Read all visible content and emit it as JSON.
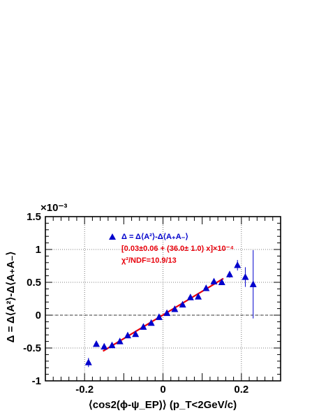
{
  "chart_data": {
    "type": "scatter",
    "xlabel": "⟨cos2(ϕ-ψ_EP)⟩ (p_T<2GeV/c)",
    "ylabel": "Δ = Δ⟨A²⟩-Δ⟨A₊A₋⟩",
    "y_multiplier": "×10⁻³",
    "xlim": [
      -0.3,
      0.3
    ],
    "ylim": [
      -1.0,
      1.5
    ],
    "x_ticks": [
      -0.2,
      0,
      0.2
    ],
    "x_tick_labels": [
      "-0.2",
      "0",
      "0.2"
    ],
    "y_ticks": [
      -1,
      -0.5,
      0,
      0.5,
      1,
      1.5
    ],
    "y_tick_labels": [
      "-1",
      "-0.5",
      "0",
      "0.5",
      "1",
      "1.5"
    ],
    "grid": "dotted at major ticks",
    "zero_line": "dashed at y = 0",
    "legend_position": "top-center",
    "colors": {
      "markers": "#0000cc",
      "fit": "#e8000b",
      "fit_text": "#e8000b"
    },
    "series": [
      {
        "name": "Δ = Δ⟨A²⟩-Δ⟨A₊A₋⟩",
        "marker": "triangle-up",
        "points": [
          {
            "x": -0.19,
            "y": -0.72,
            "err": 0.07
          },
          {
            "x": -0.17,
            "y": -0.44,
            "err": 0.04
          },
          {
            "x": -0.15,
            "y": -0.48,
            "err": 0.03
          },
          {
            "x": -0.13,
            "y": -0.46,
            "err": 0.02
          },
          {
            "x": -0.11,
            "y": -0.4,
            "err": 0.02
          },
          {
            "x": -0.09,
            "y": -0.31,
            "err": 0.02
          },
          {
            "x": -0.07,
            "y": -0.29,
            "err": 0.02
          },
          {
            "x": -0.05,
            "y": -0.18,
            "err": 0.02
          },
          {
            "x": -0.03,
            "y": -0.12,
            "err": 0.02
          },
          {
            "x": -0.01,
            "y": -0.03,
            "err": 0.02
          },
          {
            "x": 0.01,
            "y": 0.03,
            "err": 0.02
          },
          {
            "x": 0.03,
            "y": 0.09,
            "err": 0.02
          },
          {
            "x": 0.05,
            "y": 0.16,
            "err": 0.02
          },
          {
            "x": 0.07,
            "y": 0.27,
            "err": 0.02
          },
          {
            "x": 0.09,
            "y": 0.28,
            "err": 0.02
          },
          {
            "x": 0.11,
            "y": 0.41,
            "err": 0.02
          },
          {
            "x": 0.13,
            "y": 0.51,
            "err": 0.02
          },
          {
            "x": 0.15,
            "y": 0.5,
            "err": 0.03
          },
          {
            "x": 0.17,
            "y": 0.62,
            "err": 0.05
          },
          {
            "x": 0.19,
            "y": 0.76,
            "err": 0.08
          },
          {
            "x": 0.21,
            "y": 0.58,
            "err": 0.15
          },
          {
            "x": 0.23,
            "y": 0.47,
            "err": 0.52
          }
        ]
      }
    ],
    "fit": {
      "intercept": 0.003,
      "slope": 3.6,
      "x_range": [
        -0.153,
        0.154
      ],
      "label": "[0.03±0.06 + (36.0± 1.0) x]×10⁻⁴",
      "chi2": "χ²/NDF=10.9/13"
    }
  }
}
